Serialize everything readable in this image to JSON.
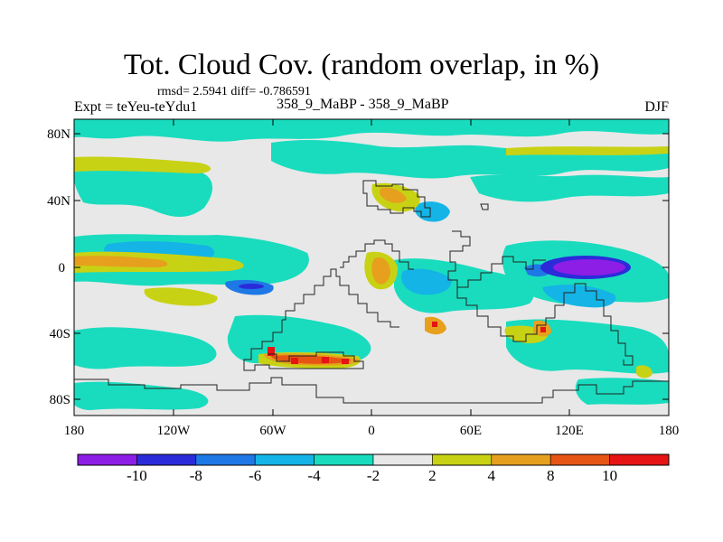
{
  "header": {
    "title": "Tot. Cloud Cov. (random overlap, in %)",
    "stats": "rmsd= 2.5941 diff= -0.786591",
    "experiment": "Expt = teYeu-teYdu1",
    "case": "358_9_MaBP - 358_9_MaBP",
    "season": "DJF"
  },
  "axes": {
    "lat_ticks": [
      "80N",
      "40N",
      "0",
      "40S",
      "80S"
    ],
    "lon_ticks": [
      "180",
      "120W",
      "60W",
      "0",
      "60E",
      "120E",
      "180"
    ]
  },
  "colorbar": {
    "labels": [
      "-10",
      "-8",
      "-6",
      "-4",
      "-2",
      "2",
      "4",
      "8",
      "10"
    ],
    "colors": [
      "#8c1ee6",
      "#2b2bd9",
      "#1e78e6",
      "#14b4e6",
      "#19dcbe",
      "#e8e8e8",
      "#c8d214",
      "#e6a01e",
      "#e65514",
      "#e61414"
    ]
  },
  "palette": {
    "neutral": "#e8e8e8",
    "teal": "#19dcbe",
    "cyan": "#14b4e6",
    "blue": "#1e78e6",
    "darkblue": "#2b2bd9",
    "purple": "#8c1ee6",
    "yellow": "#c8d214",
    "orange": "#e6a01e",
    "redorange": "#e65514",
    "red": "#e61414",
    "coast": "#222222"
  }
}
